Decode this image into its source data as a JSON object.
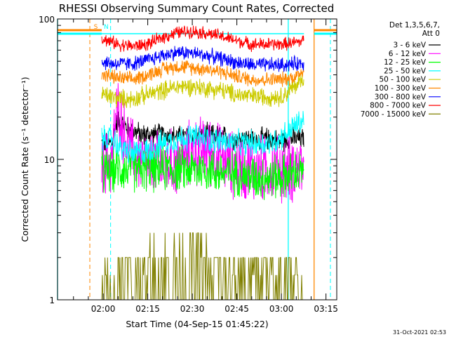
{
  "chart_data": {
    "type": "line",
    "title": "RHESSI Observing Summary Count Rates, Corrected",
    "xlabel": "Start Time (04-Sep-15 01:45:22)",
    "ylabel": "Corrected Count Rate (s⁻¹ detector⁻¹)",
    "yscale": "log",
    "ylim": [
      1,
      100
    ],
    "yticks": [
      {
        "value": 1,
        "label": "1"
      },
      {
        "value": 10,
        "label": "10"
      },
      {
        "value": 100,
        "label": "100"
      }
    ],
    "xlim_minutes": [
      -15.37,
      78.63
    ],
    "xticks": [
      {
        "minutes": 0,
        "label": "02:00"
      },
      {
        "minutes": 15,
        "label": "02:15"
      },
      {
        "minutes": 30,
        "label": "02:30"
      },
      {
        "minutes": 45,
        "label": "02:45"
      },
      {
        "minutes": 60,
        "label": "03:00"
      },
      {
        "minutes": 75,
        "label": "03:15"
      }
    ],
    "legend_header": [
      "Det 1,3,5,6,7,",
      "Att 0"
    ],
    "legend_position": "right",
    "footer_timestamp": "31-Oct-2021 02:53",
    "data_window_minutes": [
      -0.5,
      67.6
    ],
    "series": [
      {
        "name": "3 - 6 keV",
        "color": "#000000",
        "x": [
          0,
          3,
          4,
          5,
          6,
          8,
          10,
          13,
          16,
          20,
          25,
          30,
          35,
          40,
          45,
          50,
          55,
          60,
          63,
          66,
          67.5
        ],
        "y": [
          13,
          13,
          17,
          19,
          18,
          17,
          16,
          15,
          15,
          15,
          14.5,
          14.5,
          15,
          14.5,
          14,
          14,
          14,
          13.5,
          14,
          14,
          14
        ]
      },
      {
        "name": "6 - 12 keV",
        "color": "#ff00ff",
        "x": [
          0,
          3,
          4,
          5,
          6,
          7,
          9,
          12,
          16,
          20,
          25,
          30,
          35,
          40,
          45,
          50,
          55,
          60,
          63,
          66,
          67.5
        ],
        "y": [
          9,
          10,
          18,
          22,
          20,
          15,
          12,
          10,
          9,
          9,
          9.5,
          11,
          12,
          10,
          9,
          8.5,
          8.5,
          8.5,
          8.5,
          9,
          9
        ]
      },
      {
        "name": "12 - 25 keV",
        "color": "#00ff00",
        "x": [
          0,
          5,
          10,
          15,
          20,
          25,
          30,
          35,
          40,
          45,
          50,
          55,
          60,
          65,
          67.5
        ],
        "y": [
          8,
          8.5,
          8.5,
          8.5,
          8.5,
          8.5,
          8.5,
          8.5,
          8,
          8,
          7.5,
          7.5,
          7.5,
          8,
          8
        ]
      },
      {
        "name": "25 - 50 keV",
        "color": "#00ffff",
        "x": [
          0,
          3,
          6,
          10,
          15,
          20,
          25,
          30,
          35,
          40,
          45,
          50,
          55,
          58,
          61,
          64,
          67.5
        ],
        "y": [
          14,
          14,
          12,
          11,
          11.5,
          13,
          14,
          14.5,
          14,
          13.5,
          13,
          13,
          13,
          13.5,
          15,
          17,
          19
        ]
      },
      {
        "name": "50 - 100 keV",
        "color": "#cccc00",
        "x": [
          0,
          5,
          10,
          15,
          20,
          25,
          30,
          35,
          40,
          45,
          50,
          55,
          60,
          63,
          67.5
        ],
        "y": [
          29,
          27,
          27,
          29,
          31,
          33,
          33,
          32,
          31,
          29,
          28,
          28,
          28,
          31,
          38
        ]
      },
      {
        "name": "100 - 300 keV",
        "color": "#ff8800",
        "x": [
          0,
          5,
          10,
          15,
          20,
          25,
          30,
          35,
          40,
          45,
          50,
          55,
          60,
          65,
          67.5
        ],
        "y": [
          40,
          38,
          37,
          40,
          44,
          46,
          45,
          44,
          42,
          39,
          37,
          37,
          37,
          39,
          44
        ]
      },
      {
        "name": "300 - 800 keV",
        "color": "#0000ff",
        "x": [
          0,
          5,
          10,
          15,
          20,
          25,
          30,
          35,
          40,
          45,
          50,
          55,
          60,
          65,
          67.5
        ],
        "y": [
          49,
          48,
          48,
          51,
          55,
          58,
          57,
          55,
          52,
          49,
          47,
          47,
          47,
          48,
          49
        ]
      },
      {
        "name": "800 - 7000 keV",
        "color": "#ff0000",
        "x": [
          0,
          5,
          10,
          15,
          20,
          25,
          30,
          35,
          40,
          45,
          50,
          55,
          60,
          65,
          67.5
        ],
        "y": [
          72,
          66,
          64,
          66,
          74,
          80,
          82,
          79,
          75,
          70,
          66,
          66,
          66,
          68,
          70
        ]
      },
      {
        "name": "7000 - 15000 keV",
        "color": "#808000",
        "x": [
          0,
          10,
          15,
          20,
          25,
          30,
          35,
          40,
          45,
          50,
          55,
          60,
          65,
          67.5
        ],
        "y": [
          1.5,
          1.5,
          2,
          2,
          2,
          2,
          1.5,
          2,
          1.5,
          1.5,
          1.5,
          1.5,
          1.5,
          1.5
        ]
      }
    ],
    "annotations": [
      {
        "label": "S",
        "color": "#ff8800"
      },
      {
        "label": "N",
        "color": "#00ffff"
      }
    ],
    "reference_lines": [
      {
        "kind": "vertical-dashed",
        "minutes": -4.5,
        "color": "#ff8800"
      },
      {
        "kind": "vertical-dashed",
        "minutes": 2.5,
        "color": "#00ffff"
      },
      {
        "kind": "vertical-dashed",
        "minutes": 76.5,
        "color": "#00ffff"
      },
      {
        "kind": "vertical-solid",
        "minutes": 62.3,
        "color": "#00ffff"
      },
      {
        "kind": "vertical-solid",
        "minutes": 71.0,
        "color": "#ff8800"
      },
      {
        "kind": "vertical-solid",
        "minutes": -15.37,
        "color": "#00ffff"
      }
    ]
  }
}
